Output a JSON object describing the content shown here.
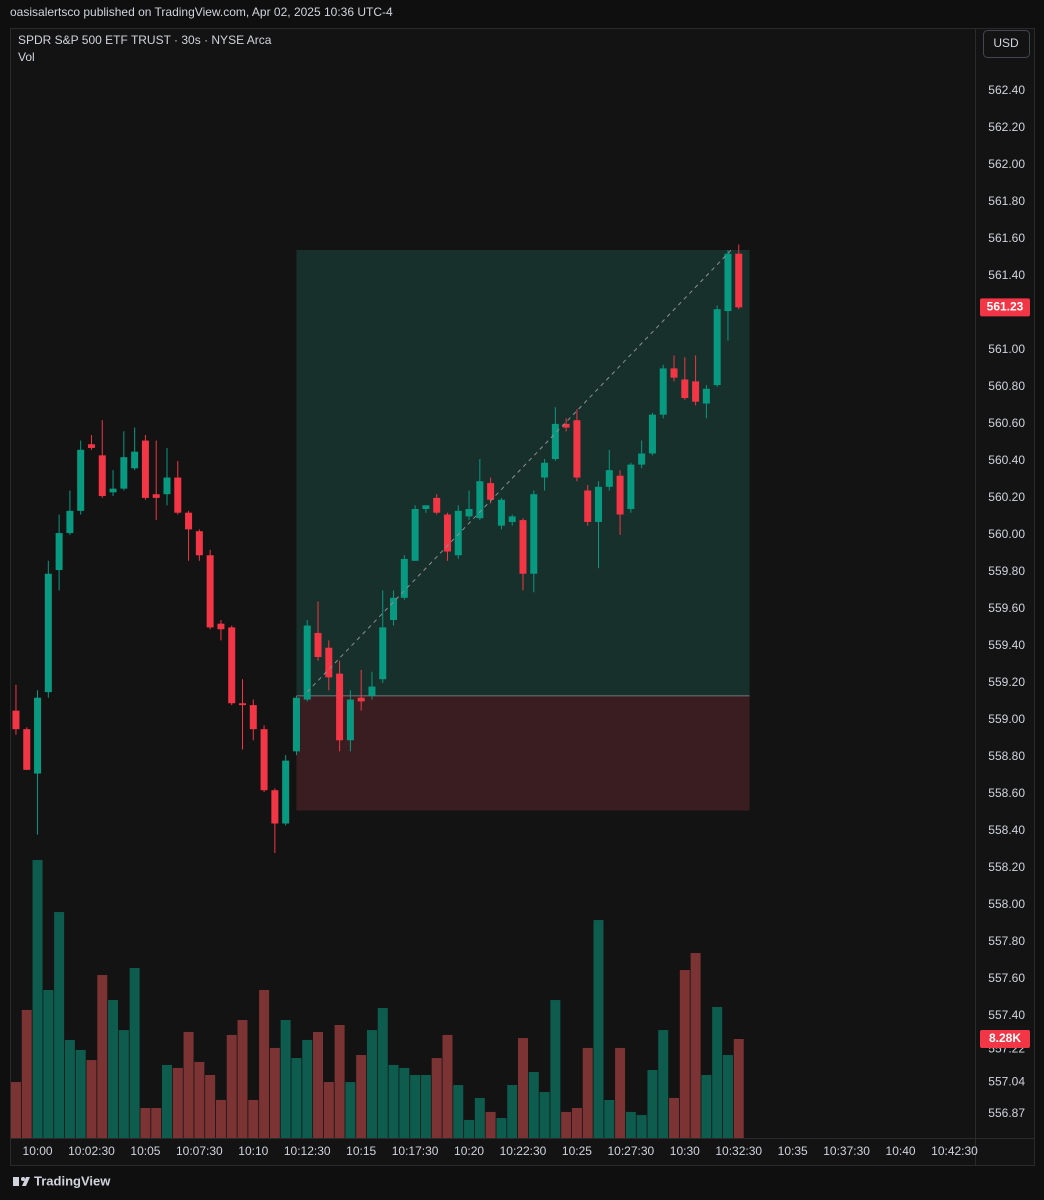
{
  "header": {
    "publisher": "oasisalertsco published on TradingView.com, Apr 02, 2025 10:36 UTC-4"
  },
  "chart_data": {
    "type": "candlestick",
    "title": "SPDR S&P 500 ETF TRUST · 30s · NYSE Arca",
    "subtitle": "Vol",
    "currency": "USD",
    "open": [
      559.05,
      558.95,
      558.71,
      559.15,
      559.81,
      560.01,
      560.13,
      560.49,
      560.43,
      560.23,
      560.25,
      560.36,
      560.51,
      560.22,
      560.22,
      560.31,
      560.12,
      560.02,
      559.89,
      559.52,
      559.5,
      559.09,
      559.08,
      558.95,
      558.62,
      558.44,
      558.83,
      559.11,
      559.47,
      559.39,
      559.25,
      558.89,
      559.12,
      559.13,
      559.22,
      559.54,
      559.66,
      559.86,
      560.14,
      560.2,
      560.11,
      559.89,
      560.1,
      560.09,
      560.28,
      560.05,
      560.07,
      560.08,
      559.79,
      560.31,
      560.41,
      560.6,
      560.62,
      560.24,
      560.07,
      560.26,
      560.32,
      560.14,
      560.38,
      560.44,
      560.65,
      560.9,
      560.84,
      560.83,
      560.71,
      560.81,
      561.21,
      561.52
    ],
    "high": [
      559.19,
      558.96,
      559.16,
      559.86,
      560.11,
      560.24,
      560.51,
      560.54,
      560.62,
      560.35,
      560.56,
      560.58,
      560.54,
      560.51,
      560.47,
      560.4,
      560.13,
      560.03,
      559.92,
      559.54,
      559.51,
      559.22,
      559.11,
      558.97,
      558.63,
      558.81,
      559.13,
      559.54,
      559.64,
      559.43,
      559.32,
      559.16,
      559.27,
      559.26,
      559.7,
      559.7,
      559.89,
      560.16,
      560.16,
      560.22,
      560.12,
      560.16,
      560.24,
      560.41,
      560.31,
      560.2,
      560.11,
      560.09,
      560.24,
      560.41,
      560.69,
      560.63,
      560.68,
      560.27,
      560.29,
      560.46,
      560.35,
      560.39,
      560.51,
      560.66,
      560.92,
      560.97,
      560.96,
      560.97,
      560.81,
      561.24,
      561.54,
      561.57
    ],
    "low": [
      558.92,
      558.73,
      558.38,
      559.12,
      559.7,
      560.0,
      560.11,
      560.46,
      560.2,
      560.21,
      560.24,
      560.35,
      560.19,
      560.08,
      560.16,
      560.11,
      559.86,
      559.86,
      559.49,
      559.43,
      559.08,
      558.84,
      558.89,
      558.61,
      558.28,
      558.43,
      558.81,
      559.1,
      559.32,
      559.16,
      558.83,
      558.83,
      559.05,
      559.11,
      559.2,
      559.51,
      559.65,
      559.86,
      560.12,
      560.11,
      559.86,
      559.87,
      560.08,
      560.08,
      560.17,
      560.03,
      560.05,
      559.7,
      559.69,
      560.24,
      560.4,
      560.56,
      560.29,
      560.05,
      559.82,
      560.24,
      560.0,
      560.12,
      560.36,
      560.43,
      560.63,
      560.83,
      560.73,
      560.7,
      560.63,
      560.8,
      561.05,
      561.22
    ],
    "close": [
      558.95,
      558.73,
      559.12,
      559.79,
      560.01,
      560.13,
      560.46,
      560.47,
      560.21,
      560.25,
      560.42,
      560.45,
      560.2,
      560.2,
      560.31,
      560.12,
      560.03,
      559.89,
      559.5,
      559.49,
      559.09,
      559.08,
      558.95,
      558.62,
      558.44,
      558.78,
      559.12,
      559.51,
      559.34,
      559.23,
      558.89,
      559.11,
      559.1,
      559.18,
      559.5,
      559.66,
      559.87,
      560.14,
      560.16,
      560.12,
      559.91,
      560.13,
      560.14,
      560.29,
      560.19,
      560.19,
      560.1,
      559.79,
      560.22,
      560.39,
      560.6,
      560.58,
      560.31,
      560.07,
      560.26,
      560.35,
      560.11,
      560.38,
      560.44,
      560.65,
      560.9,
      560.85,
      560.74,
      560.72,
      560.79,
      561.22,
      561.52,
      561.23
    ],
    "volume": [
      4680,
      10710,
      23250,
      12380,
      18900,
      8200,
      7360,
      6520,
      13630,
      11540,
      9030,
      14220,
      2510,
      2510,
      6110,
      5860,
      8870,
      6360,
      5270,
      3180,
      8620,
      9870,
      3180,
      12380,
      7530,
      9870,
      6690,
      8200,
      8870,
      4680,
      9450,
      4680,
      6940,
      9030,
      10870,
      6110,
      5860,
      5270,
      5270,
      6690,
      8620,
      4430,
      1510,
      3350,
      2180,
      1670,
      4430,
      8360,
      5520,
      3850,
      11540,
      2180,
      2510,
      7530,
      18230,
      3180,
      7530,
      2180,
      1920,
      5690,
      9030,
      3350,
      14050,
      15470,
      5270,
      10960,
      6940,
      8280
    ],
    "last_volume_label": "8.28K",
    "up_color": "#089981",
    "down_color": "#f23645",
    "volume_up_color": "#0d5c4d",
    "volume_down_color": "#7b3333",
    "position": {
      "start": 26,
      "end": 68,
      "entry": 559.13,
      "target": 561.54,
      "stop": 558.51,
      "profit_color": "#17302b",
      "loss_color": "#3a1d20"
    },
    "xlim": [
      -0.46,
      88.9
    ],
    "xticks": [
      {
        "value": 2,
        "label": "10:00"
      },
      {
        "value": 7,
        "label": "10:02:30"
      },
      {
        "value": 12,
        "label": "10:05"
      },
      {
        "value": 17,
        "label": "10:07:30"
      },
      {
        "value": 22,
        "label": "10:10"
      },
      {
        "value": 27,
        "label": "10:12:30"
      },
      {
        "value": 32,
        "label": "10:15"
      },
      {
        "value": 37,
        "label": "10:17:30"
      },
      {
        "value": 42,
        "label": "10:20"
      },
      {
        "value": 47,
        "label": "10:22:30"
      },
      {
        "value": 52,
        "label": "10:25"
      },
      {
        "value": 57,
        "label": "10:27:30"
      },
      {
        "value": 62,
        "label": "10:30"
      },
      {
        "value": 67,
        "label": "10:32:30"
      },
      {
        "value": 72,
        "label": "10:35"
      },
      {
        "value": 77,
        "label": "10:37:30"
      },
      {
        "value": 82,
        "label": "10:40"
      },
      {
        "value": 87,
        "label": "10:42:30"
      }
    ],
    "ylim": [
      556.74,
      562.74
    ],
    "yticks": [
      {
        "value": 562.4,
        "label": "562.40"
      },
      {
        "value": 562.2,
        "label": "562.20"
      },
      {
        "value": 562,
        "label": "562.00"
      },
      {
        "value": 561.8,
        "label": "561.80"
      },
      {
        "value": 561.6,
        "label": "561.60"
      },
      {
        "value": 561.4,
        "label": "561.40"
      },
      {
        "value": 561,
        "label": "561.00"
      },
      {
        "value": 560.8,
        "label": "560.80"
      },
      {
        "value": 560.6,
        "label": "560.60"
      },
      {
        "value": 560.4,
        "label": "560.40"
      },
      {
        "value": 560.2,
        "label": "560.20"
      },
      {
        "value": 560,
        "label": "560.00"
      },
      {
        "value": 559.8,
        "label": "559.80"
      },
      {
        "value": 559.6,
        "label": "559.60"
      },
      {
        "value": 559.4,
        "label": "559.40"
      },
      {
        "value": 559.2,
        "label": "559.20"
      },
      {
        "value": 559,
        "label": "559.00"
      },
      {
        "value": 558.8,
        "label": "558.80"
      },
      {
        "value": 558.6,
        "label": "558.60"
      },
      {
        "value": 558.4,
        "label": "558.40"
      },
      {
        "value": 558.2,
        "label": "558.20"
      },
      {
        "value": 558,
        "label": "558.00"
      },
      {
        "value": 557.8,
        "label": "557.80"
      },
      {
        "value": 557.6,
        "label": "557.60"
      },
      {
        "value": 557.4,
        "label": "557.40"
      },
      {
        "value": 557.22,
        "label": "557.22"
      },
      {
        "value": 557.04,
        "label": "557.04"
      },
      {
        "value": 556.87,
        "label": "556.87"
      }
    ],
    "grid": false
  },
  "footer": {
    "brand": "TradingView"
  }
}
